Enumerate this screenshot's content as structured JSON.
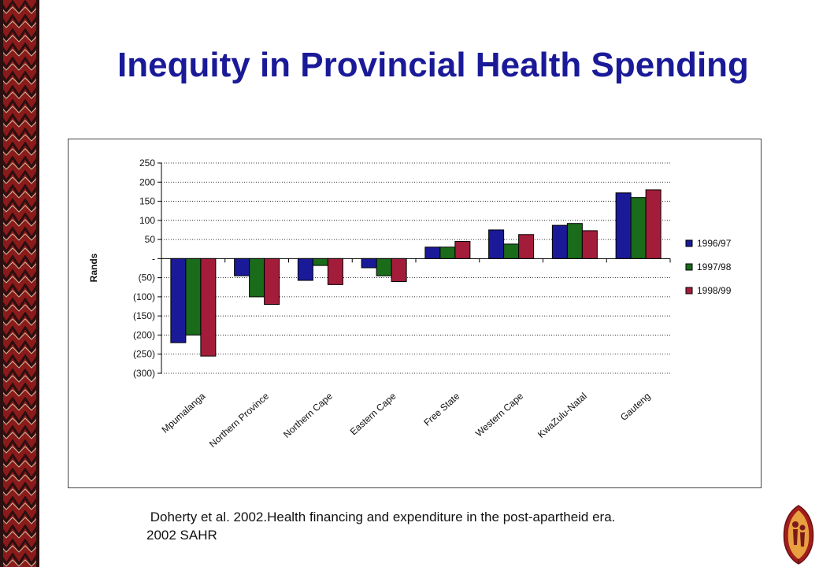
{
  "slide": {
    "title": "Inequity in Provincial Health Spending",
    "caption_line1": " Doherty et al. 2002.Health financing and expenditure in the post-apartheid era.",
    "caption_line2": "2002 SAHR"
  },
  "colors": {
    "title": "#1a1a99",
    "border_red": "#8b1a1a",
    "border_dark": "#2a1010",
    "series": [
      "#1a1a99",
      "#1a6b1a",
      "#a31d3a"
    ]
  },
  "chart_data": {
    "type": "bar",
    "title": "",
    "xlabel": "",
    "ylabel": "Rands",
    "ylim": [
      -300,
      250
    ],
    "yticks": [
      250,
      200,
      150,
      100,
      50,
      0,
      -50,
      -100,
      -150,
      -200,
      -250,
      -300
    ],
    "ytick_labels": [
      "250",
      "200",
      "150",
      "100",
      "50",
      "-",
      "(50)",
      "(100)",
      "(150)",
      "(200)",
      "(250)",
      "(300)"
    ],
    "grid": true,
    "legend_position": "right",
    "categories": [
      "Mpumalanga",
      "Northern Province",
      "Northern Cape",
      "Eastern Cape",
      "Free State",
      "Western Cape",
      "KwaZulu-Natal",
      "Gauteng"
    ],
    "series": [
      {
        "name": "1996/97",
        "values": [
          -220,
          -45,
          -57,
          -24,
          30,
          75,
          87,
          172
        ]
      },
      {
        "name": "1997/98",
        "values": [
          -200,
          -100,
          -18,
          -45,
          30,
          38,
          92,
          160
        ]
      },
      {
        "name": "1998/99",
        "values": [
          -255,
          -120,
          -68,
          -60,
          45,
          63,
          73,
          180
        ]
      }
    ]
  }
}
